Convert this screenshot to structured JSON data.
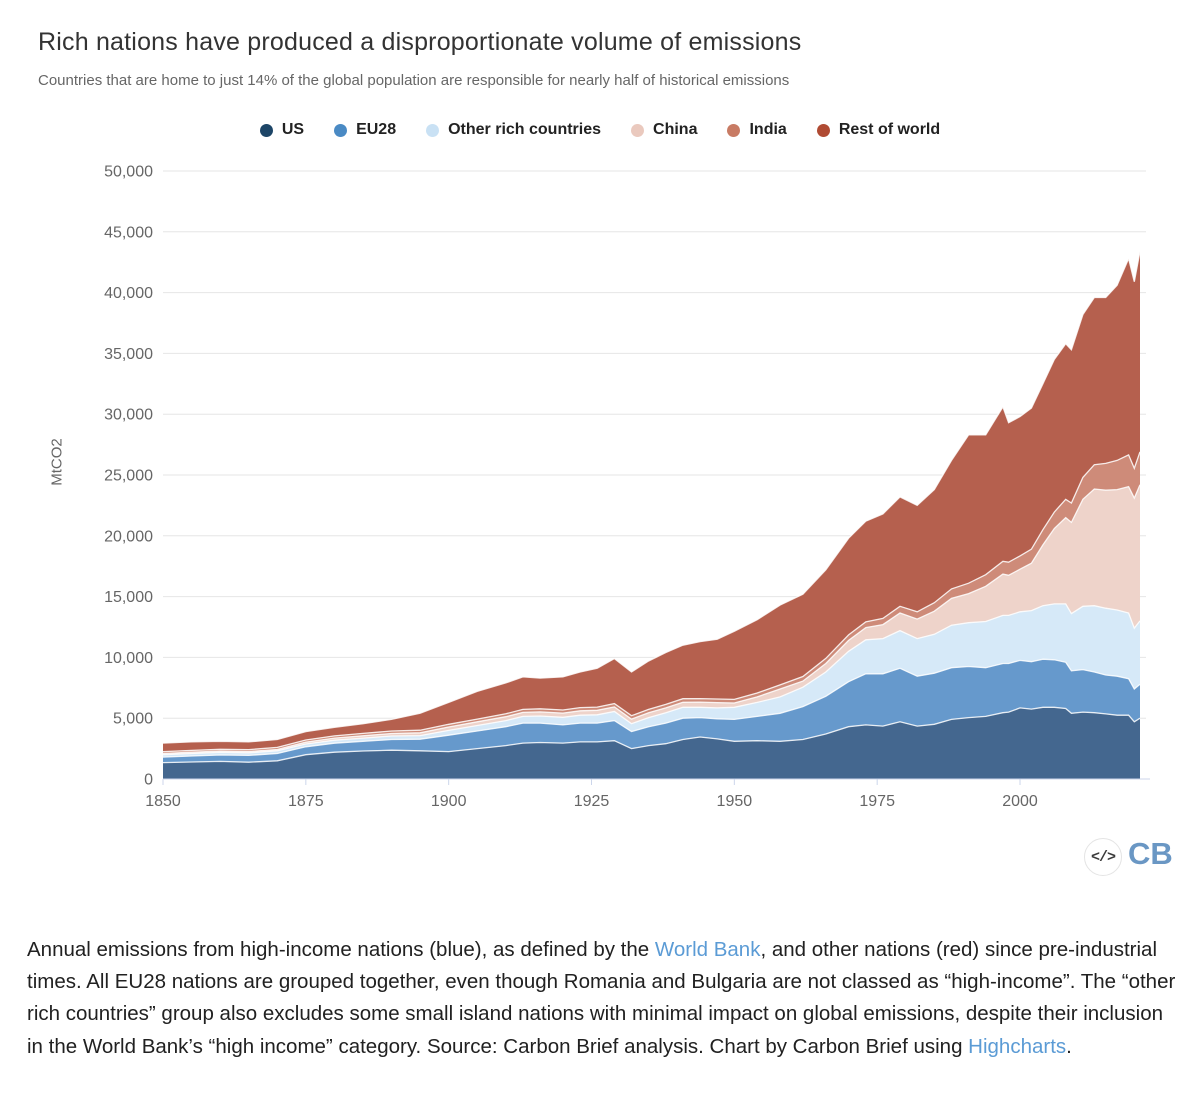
{
  "chart_data": {
    "type": "area",
    "stacked": true,
    "title": "Rich nations have produced a disproportionate volume of emissions",
    "subtitle": "Countries that are home to just 14% of the global population are responsible for nearly half of historical emissions",
    "ylabel": "MtCO2",
    "xlabel": "",
    "legend_position": "top",
    "grid": "horizontal",
    "x_range": [
      1850,
      2021
    ],
    "x_ticks": [
      1850,
      1875,
      1900,
      1925,
      1950,
      1975,
      2000
    ],
    "y_range": [
      0,
      50000
    ],
    "y_tick_interval": 5000,
    "y_tick_labels": [
      "0",
      "5,000",
      "10,000",
      "15,000",
      "20,000",
      "25,000",
      "30,000",
      "35,000",
      "40,000",
      "45,000",
      "50,000"
    ],
    "years": [
      1850,
      1855,
      1860,
      1865,
      1870,
      1875,
      1880,
      1885,
      1890,
      1895,
      1900,
      1905,
      1910,
      1913,
      1916,
      1920,
      1923,
      1926,
      1929,
      1932,
      1935,
      1938,
      1941,
      1944,
      1947,
      1950,
      1954,
      1958,
      1962,
      1966,
      1970,
      1973,
      1976,
      1979,
      1982,
      1985,
      1988,
      1991,
      1994,
      1997,
      1998,
      2000,
      2002,
      2004,
      2006,
      2008,
      2009,
      2011,
      2013,
      2015,
      2017,
      2019,
      2020,
      2021
    ],
    "series": [
      {
        "name": "US",
        "area_color": "#44678f",
        "marker_color": "#1d4567",
        "values": [
          1350,
          1400,
          1450,
          1380,
          1500,
          2000,
          2200,
          2300,
          2370,
          2320,
          2250,
          2500,
          2750,
          2950,
          3000,
          2950,
          3050,
          3050,
          3150,
          2500,
          2750,
          2900,
          3250,
          3450,
          3300,
          3100,
          3150,
          3100,
          3250,
          3700,
          4300,
          4450,
          4350,
          4700,
          4350,
          4500,
          4900,
          5050,
          5150,
          5450,
          5500,
          5850,
          5750,
          5900,
          5900,
          5800,
          5400,
          5500,
          5450,
          5350,
          5250,
          5250,
          4700,
          5000
        ]
      },
      {
        "name": "EU28",
        "area_color": "#6699cc",
        "marker_color": "#4a8ac4",
        "values": [
          450,
          490,
          520,
          560,
          600,
          650,
          740,
          800,
          880,
          950,
          1350,
          1450,
          1550,
          1650,
          1600,
          1500,
          1550,
          1550,
          1650,
          1400,
          1550,
          1700,
          1750,
          1600,
          1650,
          1800,
          2000,
          2300,
          2700,
          3100,
          3700,
          4200,
          4300,
          4400,
          4100,
          4200,
          4250,
          4200,
          4000,
          4050,
          4000,
          3900,
          3900,
          3950,
          3900,
          3800,
          3500,
          3500,
          3350,
          3200,
          3200,
          3000,
          2700,
          2800
        ]
      },
      {
        "name": "Other rich countries",
        "area_color": "#d6e9f8",
        "marker_color": "#c9e1f4",
        "values": [
          200,
          210,
          215,
          215,
          225,
          230,
          250,
          265,
          285,
          300,
          400,
          450,
          500,
          550,
          580,
          620,
          650,
          680,
          750,
          650,
          750,
          850,
          900,
          850,
          900,
          1000,
          1150,
          1350,
          1600,
          2000,
          2500,
          2800,
          2900,
          3100,
          3100,
          3200,
          3500,
          3600,
          3800,
          3950,
          3950,
          4000,
          4200,
          4400,
          4600,
          4800,
          4700,
          5200,
          5450,
          5500,
          5450,
          5400,
          5000,
          5200
        ]
      },
      {
        "name": "China",
        "area_color": "#eed3ca",
        "marker_color": "#eac9be",
        "values": [
          100,
          100,
          100,
          105,
          105,
          150,
          170,
          190,
          210,
          230,
          280,
          300,
          320,
          330,
          340,
          350,
          360,
          370,
          380,
          380,
          390,
          400,
          410,
          420,
          430,
          350,
          450,
          650,
          500,
          700,
          900,
          1000,
          1150,
          1450,
          1600,
          1900,
          2200,
          2400,
          2900,
          3400,
          3300,
          3500,
          3900,
          5000,
          6200,
          7100,
          7500,
          8800,
          9600,
          9700,
          9900,
          10400,
          10700,
          11200
        ]
      },
      {
        "name": "India",
        "area_color": "#ce8b79",
        "marker_color": "#c87b64",
        "values": [
          150,
          155,
          158,
          160,
          165,
          180,
          185,
          195,
          205,
          210,
          220,
          230,
          240,
          245,
          250,
          255,
          260,
          265,
          270,
          275,
          280,
          285,
          290,
          295,
          300,
          300,
          320,
          340,
          380,
          420,
          450,
          480,
          510,
          550,
          600,
          700,
          780,
          850,
          950,
          1050,
          1080,
          1100,
          1150,
          1250,
          1350,
          1500,
          1600,
          1800,
          2000,
          2200,
          2400,
          2600,
          2450,
          2700
        ]
      },
      {
        "name": "Rest of world",
        "area_color": "#b5604e",
        "marker_color": "#b04b33",
        "values": [
          700,
          695,
          660,
          630,
          655,
          690,
          705,
          800,
          950,
          1390,
          1800,
          2270,
          2540,
          2675,
          2530,
          2725,
          2930,
          3185,
          3700,
          3595,
          3980,
          4265,
          4400,
          4685,
          4920,
          5600,
          6030,
          6560,
          6770,
          7280,
          7950,
          8270,
          8590,
          9000,
          8750,
          9300,
          10570,
          12200,
          11500,
          12700,
          11470,
          11450,
          11600,
          12000,
          12550,
          12800,
          12600,
          13400,
          13750,
          13650,
          14400,
          16150,
          15350,
          16500
        ]
      }
    ]
  },
  "footer": {
    "embed_icon": "</>",
    "logo_text": "CB"
  },
  "caption": {
    "segments": [
      {
        "text": "Annual emissions from high-income nations (blue), as defined by the ",
        "link": false
      },
      {
        "text": "World Bank",
        "link": true
      },
      {
        "text": ", and other nations (red) since pre-industrial times. All EU28 nations are grouped together, even though Romania and Bulgaria are not classed as “high-income”. The “other rich countries” group also excludes some small island nations with minimal impact on global emissions, despite their inclusion in the World Bank’s “high income” category.  Source: Carbon Brief analysis. Chart by Carbon Brief using ",
        "link": false
      },
      {
        "text": "Highcharts",
        "link": true
      },
      {
        "text": ".",
        "link": false
      }
    ]
  }
}
